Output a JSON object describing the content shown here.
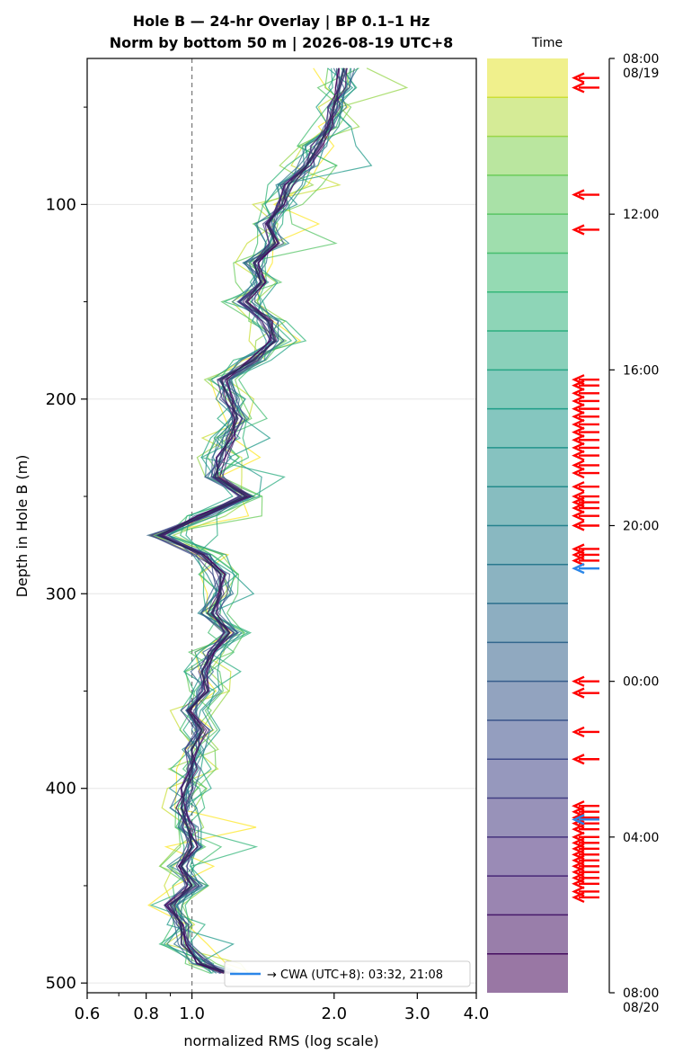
{
  "chart_data": {
    "type": "line",
    "title": "Hole B — 24-hr Overlay  |  BP 0.1–1 Hz",
    "subtitle": "Norm by bottom 50 m  |  2026-08-19 UTC+8",
    "xlabel": "normalized RMS  (log scale)",
    "ylabel": "Depth in Hole B (m)",
    "xscale": "log",
    "xlim": [
      0.6,
      4.0
    ],
    "ylim": [
      505,
      25
    ],
    "x_ticks": [
      0.6,
      0.8,
      1.0,
      2.0,
      3.0,
      4.0
    ],
    "x_tick_labels": [
      "0.6",
      "0.8",
      "1.0",
      "2.0",
      "3.0",
      "4.0"
    ],
    "y_ticks": [
      100,
      200,
      300,
      400,
      500
    ],
    "y_tick_labels": [
      "100",
      "200",
      "300",
      "400",
      "500"
    ],
    "reference_line_x": 1.0,
    "grid": "horizontal",
    "legend": {
      "placement": "lower-right",
      "label": "→ CWA (UTC+8): 03:32, 21:08",
      "color": "#2a86e8"
    },
    "depths": [
      30,
      40,
      50,
      60,
      70,
      80,
      90,
      100,
      110,
      120,
      130,
      140,
      150,
      160,
      170,
      180,
      190,
      200,
      210,
      220,
      230,
      240,
      250,
      260,
      270,
      280,
      290,
      300,
      310,
      320,
      330,
      340,
      350,
      360,
      370,
      380,
      390,
      400,
      410,
      420,
      430,
      440,
      450,
      460,
      470,
      480,
      490,
      495
    ],
    "median_profile": [
      2.1,
      2.05,
      2.0,
      1.95,
      1.85,
      1.75,
      1.6,
      1.55,
      1.45,
      1.5,
      1.35,
      1.4,
      1.3,
      1.45,
      1.5,
      1.35,
      1.15,
      1.2,
      1.25,
      1.2,
      1.15,
      1.12,
      1.3,
      1.05,
      0.85,
      1.05,
      1.15,
      1.15,
      1.1,
      1.2,
      1.1,
      1.05,
      1.08,
      0.98,
      1.05,
      1.0,
      1.0,
      0.97,
      0.95,
      0.98,
      1.0,
      0.95,
      1.0,
      0.9,
      0.95,
      0.95,
      1.05,
      1.2
    ],
    "colorbar": {
      "label": "Time",
      "tick_labels": [
        "08:00\n08/19",
        "12:00",
        "16:00",
        "20:00",
        "00:00",
        "04:00",
        "08:00\n08/20"
      ],
      "tick_hours": [
        0,
        4,
        8,
        12,
        16,
        20,
        24
      ],
      "bands": 24
    },
    "event_arrows_hours": [
      0.5,
      0.75,
      3.5,
      4.4,
      8.25,
      8.4,
      8.6,
      8.8,
      9.0,
      9.2,
      9.4,
      9.6,
      9.8,
      10.0,
      10.2,
      10.45,
      10.65,
      11.0,
      11.25,
      11.4,
      11.55,
      11.75,
      12.0,
      12.6,
      12.75,
      12.9,
      16.0,
      16.3,
      17.3,
      18.0,
      19.2,
      19.35,
      19.5,
      19.65,
      19.8,
      20.0,
      20.15,
      20.3,
      20.45,
      20.6,
      20.75,
      20.9,
      21.05,
      21.2,
      21.4,
      21.55
    ],
    "cwa_arrows_hours": [
      13.1,
      19.55
    ]
  }
}
